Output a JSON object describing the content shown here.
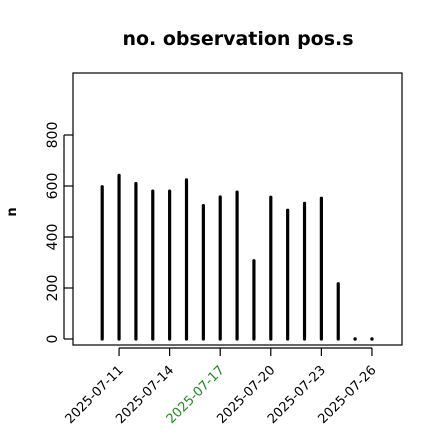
{
  "chart_data": {
    "type": "bar",
    "title": "no. observation pos.s",
    "xlabel": "",
    "ylabel": "n",
    "ylim": [
      -30,
      1050
    ],
    "yticks": [
      0,
      200,
      400,
      600,
      800
    ],
    "x": [
      "2025-07-10",
      "2025-07-11",
      "2025-07-12",
      "2025-07-13",
      "2025-07-14",
      "2025-07-15",
      "2025-07-16",
      "2025-07-17",
      "2025-07-18",
      "2025-07-19",
      "2025-07-20",
      "2025-07-21",
      "2025-07-22",
      "2025-07-23",
      "2025-07-24",
      "2025-07-25",
      "2025-07-26"
    ],
    "values": [
      597,
      642,
      610,
      580,
      580,
      624,
      523,
      557,
      576,
      307,
      556,
      505,
      532,
      552,
      217,
      0,
      0
    ],
    "xtick_labels": [
      {
        "label": "2025-07-11",
        "color": "#000000"
      },
      {
        "label": "2025-07-14",
        "color": "#000000"
      },
      {
        "label": "2025-07-17",
        "color": "#228b22"
      },
      {
        "label": "2025-07-20",
        "color": "#000000"
      },
      {
        "label": "2025-07-23",
        "color": "#000000"
      },
      {
        "label": "2025-07-26",
        "color": "#000000"
      }
    ],
    "bar_color": "#000000",
    "grid": false
  }
}
